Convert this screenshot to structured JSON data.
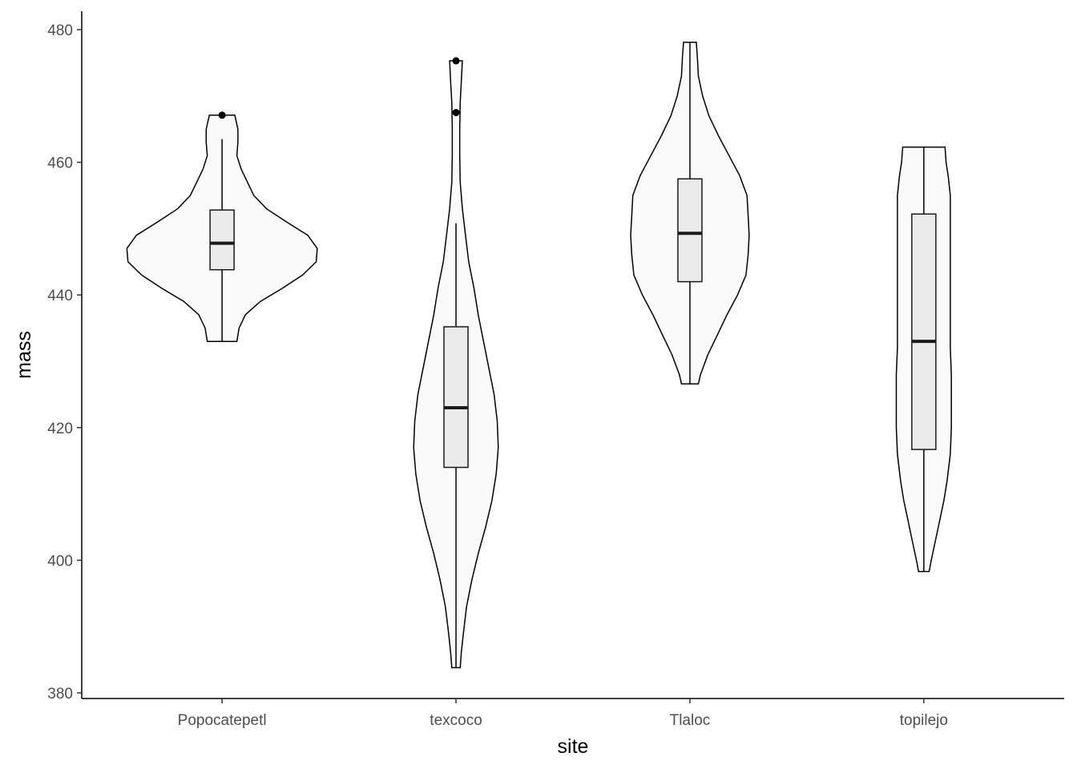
{
  "chart_data": {
    "type": "violin",
    "title": "",
    "xlabel": "site",
    "ylabel": "mass",
    "ylim": [
      379,
      483
    ],
    "yticks": [
      380,
      400,
      420,
      440,
      460,
      480
    ],
    "grid": false,
    "categories": [
      "Popocatepetl",
      "texcoco",
      "Tlaloc",
      "topilejo"
    ],
    "groups": [
      {
        "name": "Popocatepetl",
        "min": 433,
        "q1": 443.8,
        "median": 447.8,
        "q3": 452.8,
        "max": 467.1,
        "whisker_low": 433,
        "whisker_high": 463.5,
        "outliers": [
          467.1
        ],
        "density": [
          [
            433.0,
            0.14
          ],
          [
            435.0,
            0.16
          ],
          [
            437.0,
            0.22
          ],
          [
            439.0,
            0.36
          ],
          [
            441.0,
            0.57
          ],
          [
            443.0,
            0.76
          ],
          [
            445.0,
            0.89
          ],
          [
            447.0,
            0.9
          ],
          [
            449.0,
            0.81
          ],
          [
            451.0,
            0.61
          ],
          [
            453.0,
            0.42
          ],
          [
            455.0,
            0.3
          ],
          [
            457.0,
            0.24
          ],
          [
            459.0,
            0.18
          ],
          [
            461.0,
            0.14
          ],
          [
            463.0,
            0.15
          ],
          [
            465.0,
            0.15
          ],
          [
            467.1,
            0.12
          ]
        ]
      },
      {
        "name": "texcoco",
        "min": 383.8,
        "q1": 414,
        "median": 423,
        "q3": 435.2,
        "max": 475.3,
        "whisker_low": 383.8,
        "whisker_high": 450.8,
        "outliers": [
          467.5,
          475.3
        ],
        "density": [
          [
            383.8,
            0.04
          ],
          [
            386.0,
            0.05
          ],
          [
            389.0,
            0.07
          ],
          [
            393.0,
            0.1
          ],
          [
            397.0,
            0.15
          ],
          [
            401.0,
            0.21
          ],
          [
            405.0,
            0.28
          ],
          [
            409.0,
            0.34
          ],
          [
            413.0,
            0.38
          ],
          [
            417.0,
            0.4
          ],
          [
            421.0,
            0.39
          ],
          [
            425.0,
            0.36
          ],
          [
            429.0,
            0.31
          ],
          [
            433.0,
            0.26
          ],
          [
            437.0,
            0.21
          ],
          [
            441.0,
            0.17
          ],
          [
            445.0,
            0.12
          ],
          [
            449.0,
            0.09
          ],
          [
            453.0,
            0.06
          ],
          [
            457.0,
            0.04
          ],
          [
            461.0,
            0.035
          ],
          [
            465.0,
            0.035
          ],
          [
            469.0,
            0.04
          ],
          [
            472.0,
            0.05
          ],
          [
            475.3,
            0.06
          ]
        ]
      },
      {
        "name": "Tlaloc",
        "min": 426.6,
        "q1": 442,
        "median": 449.3,
        "q3": 457.5,
        "max": 478.1,
        "whisker_low": 426.6,
        "whisker_high": 478.1,
        "outliers": [],
        "density": [
          [
            426.6,
            0.08
          ],
          [
            428.0,
            0.1
          ],
          [
            431.0,
            0.17
          ],
          [
            434.0,
            0.26
          ],
          [
            437.0,
            0.35
          ],
          [
            440.0,
            0.45
          ],
          [
            443.0,
            0.53
          ],
          [
            446.0,
            0.55
          ],
          [
            449.0,
            0.56
          ],
          [
            452.0,
            0.55
          ],
          [
            455.0,
            0.54
          ],
          [
            458.0,
            0.47
          ],
          [
            461.0,
            0.37
          ],
          [
            464.0,
            0.27
          ],
          [
            467.0,
            0.18
          ],
          [
            470.0,
            0.12
          ],
          [
            473.0,
            0.08
          ],
          [
            476.0,
            0.07
          ],
          [
            478.1,
            0.06
          ]
        ]
      },
      {
        "name": "topilejo",
        "min": 398.3,
        "q1": 416.7,
        "median": 433,
        "q3": 452.2,
        "max": 462.3,
        "whisker_low": 398.3,
        "whisker_high": 462.3,
        "outliers": [],
        "density": [
          [
            398.3,
            0.05
          ],
          [
            400.0,
            0.07
          ],
          [
            403.0,
            0.11
          ],
          [
            406.0,
            0.15
          ],
          [
            409.0,
            0.19
          ],
          [
            412.0,
            0.22
          ],
          [
            416.0,
            0.25
          ],
          [
            420.0,
            0.26
          ],
          [
            424.0,
            0.26
          ],
          [
            428.0,
            0.26
          ],
          [
            432.0,
            0.25
          ],
          [
            436.0,
            0.25
          ],
          [
            440.0,
            0.25
          ],
          [
            444.0,
            0.25
          ],
          [
            448.0,
            0.25
          ],
          [
            452.0,
            0.25
          ],
          [
            455.0,
            0.25
          ],
          [
            458.0,
            0.23
          ],
          [
            460.0,
            0.21
          ],
          [
            462.3,
            0.2
          ]
        ]
      }
    ]
  }
}
